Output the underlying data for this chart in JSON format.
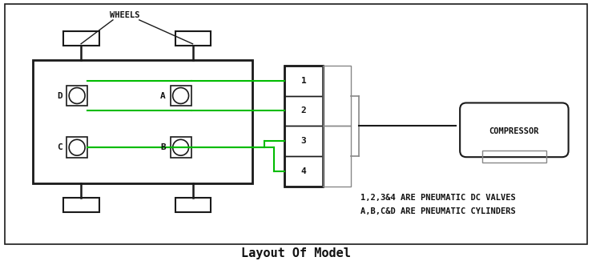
{
  "title": "Layout Of Model",
  "title_fontsize": 11,
  "annotation1": "1,2,3&4 ARE PNEUMATIC DC VALVES",
  "annotation2": "A,B,C&D ARE PNEUMATIC CYLINDERS",
  "wheels_label": "WHEELS",
  "compressor_label": "COMPRESSOR",
  "bg_color": "#ffffff",
  "border_color": "#1a1a1a",
  "green_color": "#00bb00",
  "gray_color": "#888888",
  "dark_color": "#111111",
  "fig_w": 7.39,
  "fig_h": 3.26,
  "dpi": 100
}
